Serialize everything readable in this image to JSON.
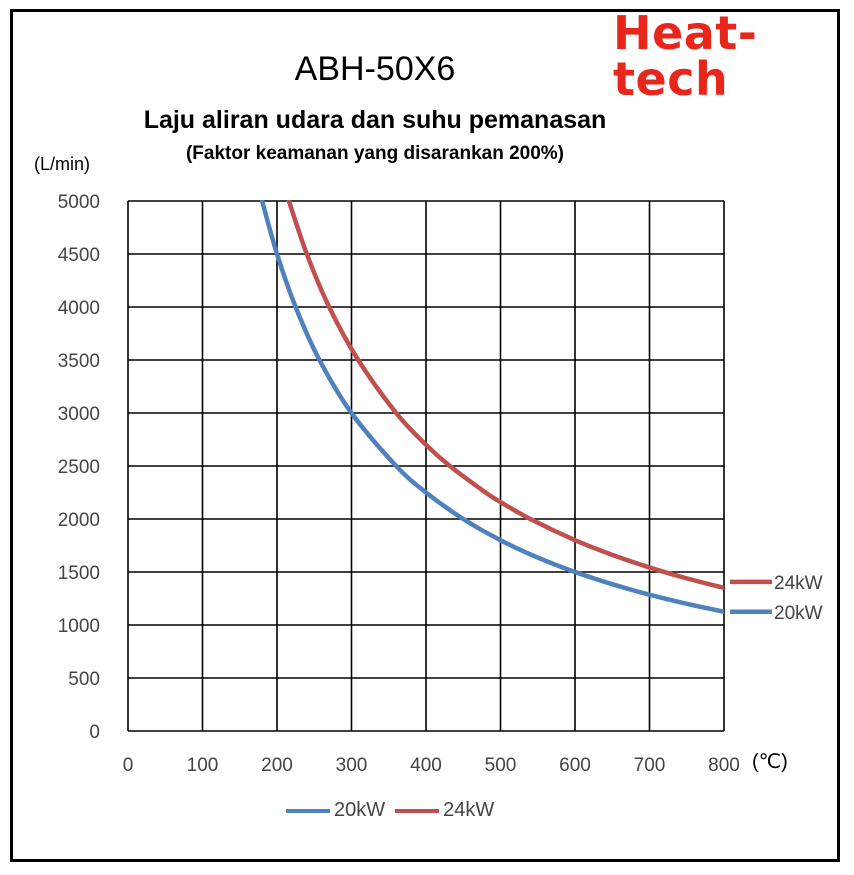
{
  "brand": "Heat-tech",
  "y_unit": "(L/min)",
  "x_unit": "(℃)",
  "chart_data": {
    "type": "line",
    "title": "ABH-50X6",
    "subtitle": "Laju aliran udara dan suhu pemanasan",
    "note": "(Faktor keamanan yang disarankan 200%)",
    "xlabel": "",
    "ylabel": "",
    "xlim": [
      0,
      800
    ],
    "ylim": [
      0,
      5000
    ],
    "xticks": [
      0,
      100,
      200,
      300,
      400,
      500,
      600,
      700,
      800
    ],
    "yticks": [
      0,
      500,
      1000,
      1500,
      2000,
      2500,
      3000,
      3500,
      4000,
      4500,
      5000
    ],
    "grid": true,
    "legend_position": "bottom",
    "series": [
      {
        "name": "20kW",
        "color": "#4f81bd",
        "end_label": "20kW",
        "points": [
          [
            180,
            5000
          ],
          [
            200,
            4500
          ],
          [
            225,
            4000
          ],
          [
            257,
            3500
          ],
          [
            300,
            3000
          ],
          [
            360,
            2500
          ],
          [
            400,
            2250
          ],
          [
            450,
            2000
          ],
          [
            500,
            1800
          ],
          [
            550,
            1636
          ],
          [
            600,
            1500
          ],
          [
            650,
            1385
          ],
          [
            700,
            1286
          ],
          [
            750,
            1200
          ],
          [
            800,
            1125
          ]
        ]
      },
      {
        "name": "24kW",
        "color": "#c0504d",
        "end_label": "24kW",
        "points": [
          [
            216,
            5000
          ],
          [
            240,
            4500
          ],
          [
            270,
            4000
          ],
          [
            309,
            3500
          ],
          [
            360,
            3000
          ],
          [
            400,
            2700
          ],
          [
            432,
            2500
          ],
          [
            480,
            2250
          ],
          [
            500,
            2160
          ],
          [
            540,
            2000
          ],
          [
            600,
            1800
          ],
          [
            650,
            1662
          ],
          [
            700,
            1543
          ],
          [
            750,
            1440
          ],
          [
            800,
            1350
          ]
        ]
      }
    ]
  }
}
